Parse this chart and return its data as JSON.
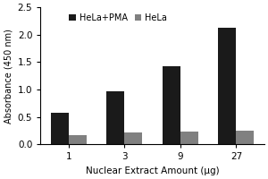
{
  "categories": [
    "1",
    "3",
    "9",
    "27"
  ],
  "hela_pma_values": [
    0.58,
    0.97,
    1.42,
    2.12
  ],
  "hela_values": [
    0.16,
    0.22,
    0.23,
    0.25
  ],
  "hela_pma_color": "#1a1a1a",
  "hela_color": "#808080",
  "xlabel": "Nuclear Extract Amount (μg)",
  "ylabel": "Absorbance (450 nm)",
  "ylim": [
    0,
    2.5
  ],
  "yticks": [
    0.0,
    0.5,
    1.0,
    1.5,
    2.0,
    2.5
  ],
  "legend_labels": [
    "HeLa+PMA",
    "HeLa"
  ],
  "bar_width": 0.32,
  "background_color": "#ffffff"
}
